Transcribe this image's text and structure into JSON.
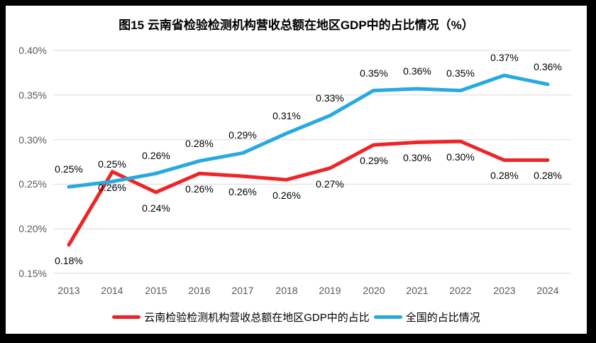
{
  "colors": {
    "yunnan_red": "#EE2426",
    "national_blue": "#27A9E1",
    "gridline": "#D9D9D9",
    "axis_text": "#595959",
    "data_label_text": "#000000",
    "frame": "#000000",
    "background": "#FFFFFF"
  },
  "chart_data": {
    "type": "line",
    "title": "图15 云南省检验检测机构营收总额在地区GDP中的占比情况（%）",
    "categories": [
      "2013",
      "2014",
      "2015",
      "2016",
      "2017",
      "2018",
      "2019",
      "2020",
      "2021",
      "2022",
      "2023",
      "2024"
    ],
    "xlabel": "",
    "ylabel": "",
    "unit": "%",
    "ylim": [
      0.15,
      0.4
    ],
    "grid": true,
    "legend_position": "bottom",
    "y_tick_values": [
      0.4,
      0.35,
      0.3,
      0.25,
      0.2,
      0.15
    ],
    "y_tick_labels": [
      "0.40%",
      "0.35%",
      "0.30%",
      "0.25%",
      "0.20%",
      "0.15%"
    ],
    "series": [
      {
        "name": "云南检验检测机构营收总额在地区GDP中的占比",
        "color": "#EE2426",
        "label_position": "below",
        "values": [
          0.18,
          0.26,
          0.24,
          0.26,
          0.26,
          0.26,
          0.27,
          0.29,
          0.3,
          0.3,
          0.28,
          0.28
        ],
        "data_labels": [
          "0.18%",
          "0.26%",
          "0.24%",
          "0.26%",
          "0.26%",
          "0.26%",
          "0.27%",
          "0.29%",
          "0.30%",
          "0.30%",
          "0.28%",
          "0.28%"
        ],
        "plot_values": [
          0.182,
          0.264,
          0.241,
          0.262,
          0.259,
          0.255,
          0.268,
          0.294,
          0.297,
          0.298,
          0.277,
          0.277
        ]
      },
      {
        "name": "全国的占比情况",
        "color": "#27A9E1",
        "label_position": "above",
        "values": [
          0.25,
          0.25,
          0.26,
          0.28,
          0.29,
          0.31,
          0.33,
          0.35,
          0.36,
          0.35,
          0.37,
          0.36
        ],
        "data_labels": [
          "0.25%",
          "0.25%",
          "0.26%",
          "0.28%",
          "0.29%",
          "0.31%",
          "0.33%",
          "0.35%",
          "0.36%",
          "0.35%",
          "0.37%",
          "0.36%"
        ],
        "plot_values": [
          0.247,
          0.253,
          0.262,
          0.276,
          0.285,
          0.307,
          0.327,
          0.355,
          0.357,
          0.355,
          0.372,
          0.362
        ]
      }
    ]
  }
}
